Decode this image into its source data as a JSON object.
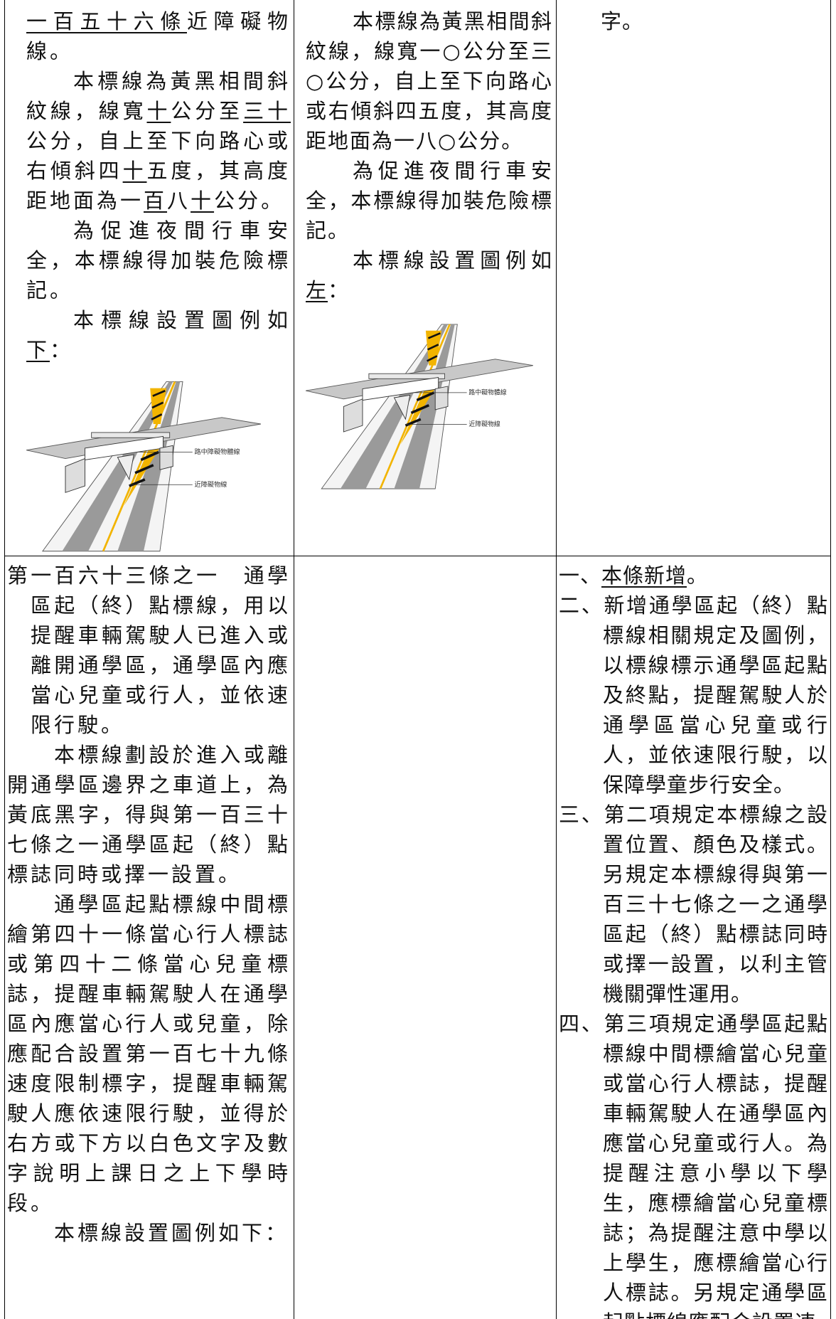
{
  "table": {
    "rows": [
      [
        {
          "continued": [
            {
              "underline": "一百五十六條"
            },
            "近障礙物線。"
          ],
          "paragraphs": [
            [
              "本標線為黃黑相間斜紋線，線寬",
              {
                "underline": "十"
              },
              "公分至",
              {
                "underline": "三十"
              },
              "公分，自上至下向路心或右傾斜四",
              {
                "underline": "十"
              },
              "五度，其高度距地面為一",
              {
                "underline": "百"
              },
              "八",
              {
                "underline": "十"
              },
              "公分。"
            ],
            [
              "為促進夜間行車安全，本標線得加裝危險標記。"
            ],
            [
              "本標線設置圖例如",
              {
                "underline": "下"
              },
              "："
            ]
          ],
          "figure": {
            "labels": [
              "路中障礙物體線",
              "近障礙物線"
            ]
          }
        },
        {
          "paragraphs": [
            [
              "本標線為黃黑相間斜紋線，線寬一○公分至三○公分，自上至下向路心或右傾斜四五度，其高度距地面為一八○公分。"
            ],
            [
              "為促進夜間行車安全，本標線得加裝危險標記。"
            ],
            [
              "本標線設置圖例如",
              {
                "underline": "左"
              },
              "："
            ]
          ],
          "figure": {
            "labels": [
              "路中礙物體線",
              "近障礙物線"
            ]
          }
        },
        {
          "continued": [
            "字。"
          ]
        }
      ],
      [
        {
          "heading": [
            "第一百六十三條之一　通學區起（終）點標線，用以提醒車輛駕駛人已進入或離開通學區，通學區內應當心兒童或行人，並依速限行駛。"
          ],
          "paragraphs": [
            [
              "本標線劃設於進入或離開通學區邊界之車道上，為黃底黑字，得與第一百三十七條之一通學區起（終）點標誌同時或擇一設置。"
            ],
            [
              "通學區起點標線中間標繪第四十一條當心行人標誌或第四十二條當心兒童標誌，提醒車輛駕駛人在通學區內應當心行人或兒童，除應配合設置第一百七十九條速度限制標字，提醒車輛駕駛人應依速限行駛，並得於右方或下方以白色文字及數字說明上課日之上下學時段。"
            ],
            [
              "本標線設置圖例如下："
            ]
          ]
        },
        {},
        {
          "items": [
            [
              "一、",
              {
                "underline": "本條新增"
              },
              "。"
            ],
            [
              "二、新增通學區起（終）點標線相關規定及圖例，以標線標示通學區起點及終點，提醒駕駛人於通學區當心兒童或行人，並依速限行駛，以保障學童步行安全。"
            ],
            [
              "三、第二項規定本標線之設置位置、顏色及樣式。另規定本標線得與第一百三十七條之一之通學區起（終）點標誌同時或擇一設置，以利主管機關彈性運用。"
            ],
            [
              "四、第三項規定通學區起點標線中間標繪當心兒童或當心行人標誌，提醒車輛駕駛人在通學區內應當心兒童或行人。為提醒注意小學以下學生，應標繪當心兒童標誌；為提醒注意中學以上學生，應標繪當心行人標誌。另規定通學區起點標線應配合設置速"
            ]
          ]
        }
      ]
    ]
  }
}
